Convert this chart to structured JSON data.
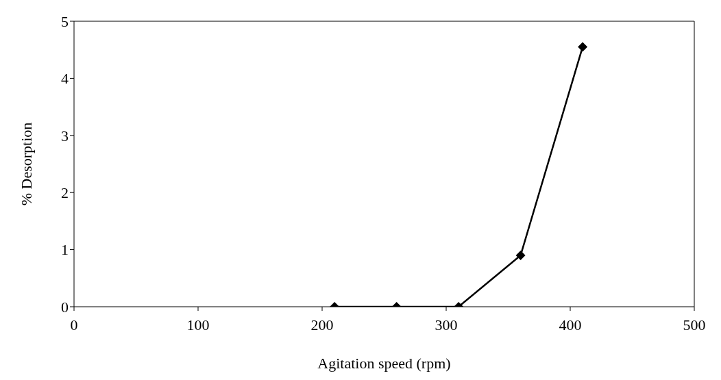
{
  "chart_data": {
    "type": "line",
    "xlabel": "Agitation speed (rpm)",
    "ylabel": "% Desorption",
    "x": [
      210,
      260,
      310,
      360,
      410
    ],
    "series": [
      {
        "color": "#000000",
        "values": [
          0,
          0,
          0,
          0.9,
          4.55
        ]
      }
    ],
    "xlim": [
      0,
      500
    ],
    "xticks": [
      0,
      100,
      200,
      300,
      400,
      500
    ],
    "ylim": [
      0,
      5
    ],
    "yticks": [
      0,
      1,
      2,
      3,
      4,
      5
    ],
    "grid": false,
    "legend": false,
    "marker": "diamond",
    "line_style": "solid"
  }
}
